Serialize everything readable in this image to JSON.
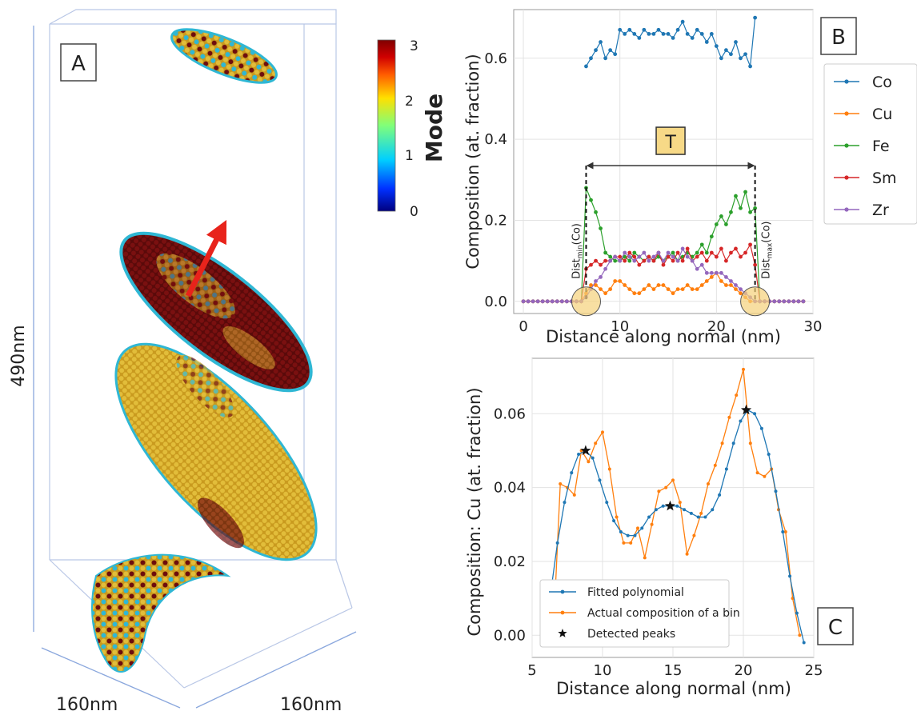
{
  "panel_a": {
    "label": "A",
    "height_label": "490nm",
    "width_label_1": "160nm",
    "width_label_2": "160nm",
    "colorbar": {
      "title": "Mode",
      "ticks": [
        "3",
        "2",
        "1",
        "0"
      ],
      "colors": [
        "#00007f",
        "#0050ff",
        "#00d4ff",
        "#7dff7a",
        "#ffe600",
        "#ff6a00",
        "#d40000",
        "#7f0000"
      ]
    },
    "arrow_color": "#e8231b",
    "particle_colors": {
      "mode_low": "#2fb7d4",
      "mode_mid": "#d8b22c",
      "mode_high": "#6e0d0d"
    }
  },
  "panel_b": {
    "label": "B",
    "annotation": "T",
    "dist_left": "Dist",
    "dist_left_sub": "min",
    "dist_left_suffix": "(Co)",
    "dist_right": "Dist",
    "dist_right_sub": "max",
    "dist_right_suffix": "(Co)"
  },
  "panel_c": {
    "label": "C"
  },
  "chart_data": [
    {
      "type": "line",
      "xlabel": "Distance along normal (nm)",
      "ylabel": "Composition (at. fraction)",
      "xlim": [
        -1,
        30
      ],
      "ylim": [
        -0.03,
        0.72
      ],
      "xticks": [
        "0",
        "10",
        "20",
        "30"
      ],
      "yticks": [
        "0.0",
        "0.2",
        "0.4",
        "0.6"
      ],
      "grid": true,
      "legend_position": "outside-right",
      "x": [
        0,
        0.5,
        1,
        1.5,
        2,
        2.5,
        3,
        3.5,
        4,
        4.5,
        5,
        5.5,
        6,
        6.5,
        7,
        7.5,
        8,
        8.5,
        9,
        9.5,
        10,
        10.5,
        11,
        11.5,
        12,
        12.5,
        13,
        13.5,
        14,
        14.5,
        15,
        15.5,
        16,
        16.5,
        17,
        17.5,
        18,
        18.5,
        19,
        19.5,
        20,
        20.5,
        21,
        21.5,
        22,
        22.5,
        23,
        23.5,
        24,
        24.5,
        25,
        25.5,
        26,
        26.5,
        27,
        27.5,
        28,
        28.5,
        29
      ],
      "series": [
        {
          "name": "Co",
          "color": "#1f77b4",
          "x": [
            6.5,
            7,
            7.5,
            8,
            8.5,
            9,
            9.5,
            10,
            10.5,
            11,
            11.5,
            12,
            12.5,
            13,
            13.5,
            14,
            14.5,
            15,
            15.5,
            16,
            16.5,
            17,
            17.5,
            18,
            18.5,
            19,
            19.5,
            20,
            20.5,
            21,
            21.5,
            22,
            22.5,
            23,
            23.5,
            24
          ],
          "values": [
            0.58,
            0.6,
            0.62,
            0.64,
            0.6,
            0.62,
            0.61,
            0.67,
            0.66,
            0.67,
            0.66,
            0.65,
            0.67,
            0.66,
            0.66,
            0.67,
            0.66,
            0.66,
            0.65,
            0.67,
            0.69,
            0.66,
            0.65,
            0.67,
            0.66,
            0.64,
            0.66,
            0.63,
            0.6,
            0.62,
            0.61,
            0.64,
            0.6,
            0.61,
            0.58,
            0.7
          ]
        },
        {
          "name": "Cu",
          "color": "#ff7f0e",
          "values": [
            0,
            0,
            0,
            0,
            0,
            0,
            0,
            0,
            0,
            0,
            0,
            0,
            0,
            0.02,
            0.04,
            0.04,
            0.03,
            0.02,
            0.03,
            0.05,
            0.05,
            0.04,
            0.03,
            0.02,
            0.02,
            0.03,
            0.04,
            0.03,
            0.04,
            0.04,
            0.03,
            0.02,
            0.03,
            0.03,
            0.04,
            0.03,
            0.03,
            0.04,
            0.05,
            0.06,
            0.07,
            0.05,
            0.04,
            0.04,
            0.03,
            0.02,
            0.01,
            0,
            0,
            0,
            0,
            0,
            0,
            0,
            0,
            0,
            0,
            0,
            0
          ]
        },
        {
          "name": "Fe",
          "color": "#2ca02c",
          "values": [
            0,
            0,
            0,
            0,
            0,
            0,
            0,
            0,
            0,
            0,
            0,
            0,
            0,
            0.28,
            0.25,
            0.22,
            0.18,
            0.12,
            0.11,
            0.1,
            0.1,
            0.11,
            0.1,
            0.12,
            0.11,
            0.1,
            0.11,
            0.1,
            0.11,
            0.1,
            0.11,
            0.12,
            0.1,
            0.11,
            0.12,
            0.11,
            0.12,
            0.14,
            0.12,
            0.16,
            0.19,
            0.21,
            0.19,
            0.22,
            0.26,
            0.23,
            0.27,
            0.22,
            0.23,
            0,
            0,
            0,
            0,
            0,
            0,
            0,
            0,
            0,
            0
          ]
        },
        {
          "name": "Sm",
          "color": "#d62728",
          "values": [
            0,
            0,
            0,
            0,
            0,
            0,
            0,
            0,
            0,
            0,
            0,
            0,
            0,
            0.08,
            0.09,
            0.1,
            0.09,
            0.1,
            0.1,
            0.11,
            0.11,
            0.1,
            0.12,
            0.11,
            0.09,
            0.1,
            0.11,
            0.1,
            0.12,
            0.09,
            0.11,
            0.1,
            0.12,
            0.1,
            0.13,
            0.1,
            0.11,
            0.12,
            0.1,
            0.12,
            0.11,
            0.13,
            0.1,
            0.12,
            0.13,
            0.11,
            0.12,
            0.14,
            0.09,
            0,
            0,
            0,
            0,
            0,
            0,
            0,
            0,
            0,
            0
          ]
        },
        {
          "name": "Zr",
          "color": "#9467bd",
          "values": [
            0,
            0,
            0,
            0,
            0,
            0,
            0,
            0,
            0,
            0,
            0,
            0,
            0,
            0.01,
            0.03,
            0.05,
            0.06,
            0.08,
            0.1,
            0.11,
            0.1,
            0.12,
            0.11,
            0.1,
            0.11,
            0.12,
            0.1,
            0.11,
            0.12,
            0.1,
            0.12,
            0.11,
            0.1,
            0.13,
            0.11,
            0.1,
            0.08,
            0.09,
            0.07,
            0.07,
            0.07,
            0.07,
            0.06,
            0.05,
            0.04,
            0.03,
            0.02,
            0.01,
            0,
            0,
            0,
            0,
            0,
            0,
            0,
            0,
            0,
            0,
            0
          ]
        }
      ],
      "markers": {
        "dist_min_x": 6.5,
        "dist_max_x": 24,
        "arrow_y": 0.335
      }
    },
    {
      "type": "line",
      "xlabel": "Distance along normal (nm)",
      "ylabel": "Composition: Cu (at. fraction)",
      "xlim": [
        5,
        25
      ],
      "ylim": [
        -0.006,
        0.075
      ],
      "xticks": [
        "5",
        "10",
        "15",
        "20",
        "25"
      ],
      "yticks": [
        "0.00",
        "0.02",
        "0.04",
        "0.06"
      ],
      "grid": true,
      "legend_position": "lower-left",
      "series": [
        {
          "name": "Fitted polynomial",
          "color": "#1f77b4",
          "x": [
            5.8,
            6.3,
            6.8,
            7.3,
            7.8,
            8.3,
            8.8,
            9.3,
            9.8,
            10.3,
            10.8,
            11.3,
            11.8,
            12.3,
            12.8,
            13.3,
            13.8,
            14.3,
            14.8,
            15.3,
            15.8,
            16.3,
            16.8,
            17.3,
            17.8,
            18.3,
            18.8,
            19.3,
            19.8,
            20.3,
            20.8,
            21.3,
            21.8,
            22.3,
            22.8,
            23.3,
            23.8,
            24.3
          ],
          "values": [
            -0.002,
            0.011,
            0.025,
            0.036,
            0.044,
            0.049,
            0.05,
            0.048,
            0.042,
            0.036,
            0.031,
            0.028,
            0.027,
            0.027,
            0.029,
            0.032,
            0.034,
            0.035,
            0.035,
            0.035,
            0.034,
            0.033,
            0.032,
            0.032,
            0.034,
            0.038,
            0.045,
            0.052,
            0.058,
            0.061,
            0.06,
            0.056,
            0.049,
            0.039,
            0.028,
            0.016,
            0.006,
            -0.002
          ]
        },
        {
          "name": "Actual composition of a bin",
          "color": "#ff7f0e",
          "x": [
            6,
            6.5,
            7,
            7.5,
            8,
            8.5,
            9,
            9.5,
            10,
            10.5,
            11,
            11.5,
            12,
            12.5,
            13,
            13.5,
            14,
            14.5,
            15,
            15.5,
            16,
            16.5,
            17,
            17.5,
            18,
            18.5,
            19,
            19.5,
            20,
            20.5,
            21,
            21.5,
            22,
            22.5,
            23,
            23.5,
            24
          ],
          "values": [
            0,
            0,
            0.041,
            0.04,
            0.038,
            0.05,
            0.047,
            0.052,
            0.055,
            0.045,
            0.032,
            0.025,
            0.025,
            0.029,
            0.021,
            0.03,
            0.039,
            0.04,
            0.042,
            0.036,
            0.022,
            0.027,
            0.033,
            0.041,
            0.046,
            0.052,
            0.059,
            0.065,
            0.072,
            0.052,
            0.044,
            0.043,
            0.045,
            0.034,
            0.028,
            0.01,
            0
          ]
        },
        {
          "name": "Detected peaks",
          "color": "#111111",
          "x": [
            8.8,
            14.8,
            20.2
          ],
          "values": [
            0.05,
            0.035,
            0.061
          ]
        }
      ]
    }
  ]
}
